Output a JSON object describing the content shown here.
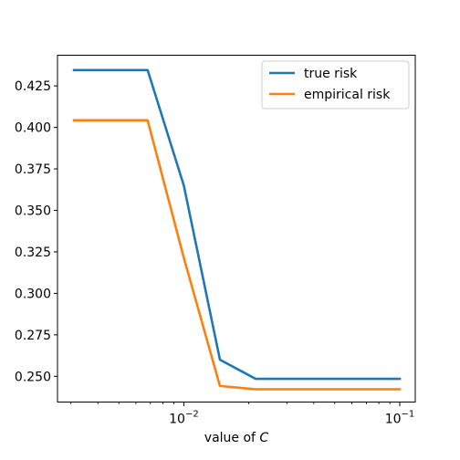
{
  "chart_data": {
    "type": "line",
    "xscale": "log",
    "xlabel_prefix": "value of ",
    "xlabel_var": "C",
    "ylabel": "",
    "title": "",
    "xlim": [
      0.0026,
      0.118
    ],
    "ylim": [
      0.2345,
      0.4435
    ],
    "x_ticks_major": [
      {
        "value": 0.01,
        "base": "10",
        "exp": "−2"
      },
      {
        "value": 0.1,
        "base": "10",
        "exp": "−1"
      }
    ],
    "y_ticks": [
      {
        "value": 0.25,
        "label": "0.250"
      },
      {
        "value": 0.275,
        "label": "0.275"
      },
      {
        "value": 0.3,
        "label": "0.300"
      },
      {
        "value": 0.325,
        "label": "0.325"
      },
      {
        "value": 0.35,
        "label": "0.350"
      },
      {
        "value": 0.375,
        "label": "0.375"
      },
      {
        "value": 0.4,
        "label": "0.400"
      },
      {
        "value": 0.425,
        "label": "0.425"
      }
    ],
    "series": [
      {
        "name": "true risk",
        "color": "#1f77b4",
        "points": [
          [
            0.0031,
            0.4345
          ],
          [
            0.0046,
            0.4345
          ],
          [
            0.0068,
            0.4345
          ],
          [
            0.01,
            0.365
          ],
          [
            0.0147,
            0.26
          ],
          [
            0.0215,
            0.2485
          ],
          [
            0.0316,
            0.2485
          ],
          [
            0.0464,
            0.2485
          ],
          [
            0.0681,
            0.2485
          ],
          [
            0.1,
            0.2485
          ]
        ]
      },
      {
        "name": "empirical risk",
        "color": "#ff7f0e",
        "points": [
          [
            0.0031,
            0.4043
          ],
          [
            0.0046,
            0.4043
          ],
          [
            0.0068,
            0.4043
          ],
          [
            0.01,
            0.3215
          ],
          [
            0.0147,
            0.2442
          ],
          [
            0.0215,
            0.2422
          ],
          [
            0.0316,
            0.2422
          ],
          [
            0.0464,
            0.2422
          ],
          [
            0.0681,
            0.2422
          ],
          [
            0.1,
            0.2422
          ]
        ]
      }
    ],
    "legend_position": "upper right",
    "grid": false
  }
}
